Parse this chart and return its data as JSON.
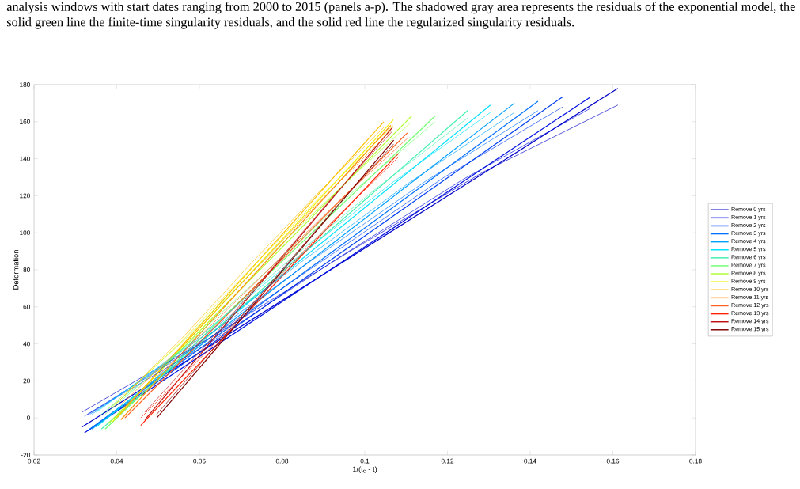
{
  "chart_data": {
    "type": "line",
    "annotations": [
      "analysis windows with start dates ranging from 2000 to 2015 (panels a-p). The shadowed gray area represents the residuals of the exponential model, the solid green line the finite-time singularity residuals, and the solid red line the regularized singularity residuals."
    ],
    "xlabel": "1/(t$_{c}$ - t)",
    "ylabel": "Deformation",
    "xlim": [
      0.02,
      0.18
    ],
    "ylim": [
      -20,
      180
    ],
    "xticks": [
      0.02,
      0.04,
      0.06,
      0.08,
      0.1,
      0.12,
      0.14,
      0.16,
      0.18
    ],
    "yticks": [
      -20,
      0,
      20,
      40,
      60,
      80,
      100,
      120,
      140,
      160,
      180
    ],
    "grid": false,
    "legend": "right",
    "series": [
      {
        "name": "Remove 0 yrs",
        "color": "#0000c8",
        "x": [
          0.0315,
          0.1612
        ],
        "values": [
          -5,
          178
        ]
      },
      {
        "name": "Remove 1 yrs",
        "color": "#0010e0",
        "x": [
          0.0322,
          0.1544
        ],
        "values": [
          -8,
          173
        ]
      },
      {
        "name": "Remove 2 yrs",
        "color": "#0040f0",
        "x": [
          0.033,
          0.1479
        ],
        "values": [
          -7,
          173.5
        ]
      },
      {
        "name": "Remove 3 yrs",
        "color": "#0070ff",
        "x": [
          0.0335,
          0.1419
        ],
        "values": [
          -6,
          171
        ]
      },
      {
        "name": "Remove 4 yrs",
        "color": "#00a0ff",
        "x": [
          0.034,
          0.1362
        ],
        "values": [
          -6,
          170
        ]
      },
      {
        "name": "Remove 5 yrs",
        "color": "#00e0ff",
        "x": [
          0.035,
          0.1304
        ],
        "values": [
          -5,
          169
        ]
      },
      {
        "name": "Remove 6 yrs",
        "color": "#40f0b0",
        "x": [
          0.0363,
          0.1249
        ],
        "values": [
          -6,
          166
        ]
      },
      {
        "name": "Remove 7 yrs",
        "color": "#70ff70",
        "x": [
          0.0372,
          0.117
        ],
        "values": [
          -6,
          163
        ]
      },
      {
        "name": "Remove 8 yrs",
        "color": "#b0ff30",
        "x": [
          0.038,
          0.1113
        ],
        "values": [
          -3,
          163
        ]
      },
      {
        "name": "Remove 9 yrs",
        "color": "#f0f000",
        "x": [
          0.039,
          0.1069
        ],
        "values": [
          -2,
          161
        ]
      },
      {
        "name": "Remove 10 yrs",
        "color": "#ffc000",
        "x": [
          0.04,
          0.1046
        ],
        "values": [
          0,
          160
        ]
      },
      {
        "name": "Remove 11 yrs",
        "color": "#ff9000",
        "x": [
          0.041,
          0.1063
        ],
        "values": [
          -1,
          158
        ]
      },
      {
        "name": "Remove 12 yrs",
        "color": "#ff6020",
        "x": [
          0.042,
          0.1103
        ],
        "values": [
          0,
          154
        ]
      },
      {
        "name": "Remove 13 yrs",
        "color": "#ff2000",
        "x": [
          0.0458,
          0.1082
        ],
        "values": [
          -4,
          143
        ]
      },
      {
        "name": "Remove 14 yrs",
        "color": "#c01010",
        "x": [
          0.0468,
          0.1067
        ],
        "values": [
          -1,
          157
        ]
      },
      {
        "name": "Remove 15 yrs",
        "color": "#800000",
        "x": [
          0.0497,
          0.107
        ],
        "values": [
          0,
          150
        ]
      },
      {
        "color": "#0000c8",
        "x": [
          0.0315,
          0.0639,
          0.0964,
          0.1288,
          0.1612
        ],
        "values": [
          3,
          45,
          90,
          133,
          169
        ]
      },
      {
        "color": "#0010e0",
        "x": [
          0.0322,
          0.0628,
          0.0933,
          0.1239,
          0.1544
        ],
        "values": [
          1,
          41,
          86,
          129,
          167
        ]
      },
      {
        "color": "#0040f0",
        "x": [
          0.033,
          0.0617,
          0.0905,
          0.1192,
          0.1479
        ],
        "values": [
          2,
          42,
          86,
          130,
          168
        ]
      },
      {
        "color": "#0070ff",
        "x": [
          0.0335,
          0.0606,
          0.0877,
          0.1148,
          0.1419
        ],
        "values": [
          2,
          42,
          86,
          128,
          166
        ]
      },
      {
        "color": "#00a0ff",
        "x": [
          0.034,
          0.0596,
          0.0851,
          0.1107,
          0.1362
        ],
        "values": [
          2,
          42,
          85,
          127,
          165
        ]
      },
      {
        "color": "#00e0ff",
        "x": [
          0.035,
          0.0589,
          0.0827,
          0.1066,
          0.1304
        ],
        "values": [
          3,
          42,
          85,
          127,
          165
        ]
      },
      {
        "color": "#40f0b0",
        "x": [
          0.0363,
          0.0585,
          0.0806,
          0.1028,
          0.1249
        ],
        "values": [
          2,
          41,
          83,
          124,
          162
        ]
      },
      {
        "color": "#70ff70",
        "x": [
          0.0372,
          0.0572,
          0.0771,
          0.0971,
          0.117
        ],
        "values": [
          2,
          40,
          81,
          122,
          160
        ]
      },
      {
        "color": "#b0ff30",
        "x": [
          0.038,
          0.0563,
          0.0747,
          0.093,
          0.1113
        ],
        "values": [
          5,
          42,
          83,
          122,
          160
        ]
      },
      {
        "color": "#f0f000",
        "x": [
          0.039,
          0.056,
          0.073,
          0.0899,
          0.1069
        ],
        "values": [
          6,
          42,
          82,
          121,
          158
        ]
      },
      {
        "color": "#ffc000",
        "x": [
          0.04,
          0.0562,
          0.0723,
          0.0885,
          0.1046
        ],
        "values": [
          8,
          44,
          83,
          121,
          157
        ]
      },
      {
        "color": "#ff9000",
        "x": [
          0.041,
          0.0573,
          0.0737,
          0.09,
          0.1063
        ],
        "values": [
          7,
          42,
          81,
          119,
          155
        ]
      },
      {
        "color": "#ff6020",
        "x": [
          0.042,
          0.0591,
          0.0762,
          0.0932,
          0.1103
        ],
        "values": [
          6,
          42,
          79,
          116,
          151
        ]
      },
      {
        "color": "#ff2000",
        "x": [
          0.0458,
          0.0614,
          0.077,
          0.0926,
          0.1082
        ],
        "values": [
          0,
          35,
          71,
          107,
          141
        ]
      },
      {
        "color": "#c01010",
        "x": [
          0.0468,
          0.0618,
          0.0768,
          0.0917,
          0.1067
        ],
        "values": [
          3,
          40,
          79,
          118,
          155
        ]
      },
      {
        "color": "#800000",
        "x": [
          0.0497,
          0.064,
          0.0784,
          0.0927,
          0.107
        ],
        "values": [
          2,
          39,
          76,
          113,
          148
        ]
      }
    ]
  }
}
